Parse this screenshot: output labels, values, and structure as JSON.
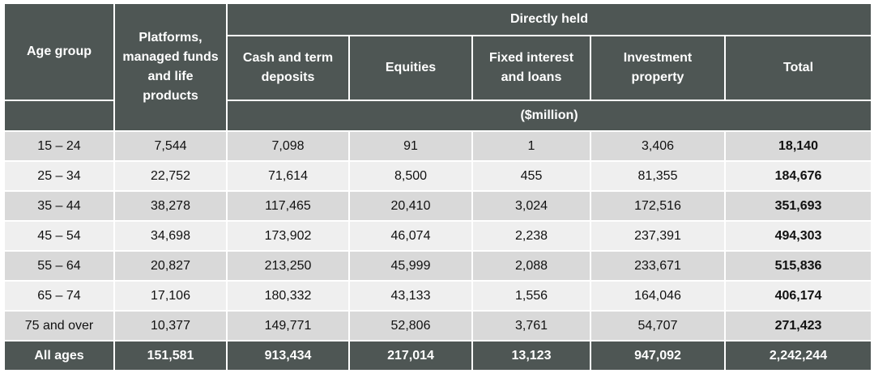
{
  "headers": {
    "age_group": "Age group",
    "platforms": "Platforms, managed funds and life products",
    "directly_held": "Directly held",
    "cash": "Cash and term deposits",
    "equities": "Equities",
    "fixed_interest": "Fixed interest and loans",
    "investment_property": "Investment property",
    "total": "Total",
    "unit": "($million)"
  },
  "rows": [
    {
      "age": "15 – 24",
      "platforms": "7,544",
      "cash": "7,098",
      "equities": "91",
      "fixed": "1",
      "property": "3,406",
      "total": "18,140"
    },
    {
      "age": "25 – 34",
      "platforms": "22,752",
      "cash": "71,614",
      "equities": "8,500",
      "fixed": "455",
      "property": "81,355",
      "total": "184,676"
    },
    {
      "age": "35 – 44",
      "platforms": "38,278",
      "cash": "117,465",
      "equities": "20,410",
      "fixed": "3,024",
      "property": "172,516",
      "total": "351,693"
    },
    {
      "age": "45 – 54",
      "platforms": "34,698",
      "cash": "173,902",
      "equities": "46,074",
      "fixed": "2,238",
      "property": "237,391",
      "total": "494,303"
    },
    {
      "age": "55 – 64",
      "platforms": "20,827",
      "cash": "213,250",
      "equities": "45,999",
      "fixed": "2,088",
      "property": "233,671",
      "total": "515,836"
    },
    {
      "age": "65 – 74",
      "platforms": "17,106",
      "cash": "180,332",
      "equities": "43,133",
      "fixed": "1,556",
      "property": "164,046",
      "total": "406,174"
    },
    {
      "age": "75 and over",
      "platforms": "10,377",
      "cash": "149,771",
      "equities": "52,806",
      "fixed": "3,761",
      "property": "54,707",
      "total": "271,423"
    }
  ],
  "footer": {
    "age": "All ages",
    "platforms": "151,581",
    "cash": "913,434",
    "equities": "217,014",
    "fixed": "13,123",
    "property": "947,092",
    "total": "2,242,244"
  },
  "colors": {
    "header_bg": "#4e5654",
    "row_odd": "#d9d9d9",
    "row_even": "#efefef"
  }
}
